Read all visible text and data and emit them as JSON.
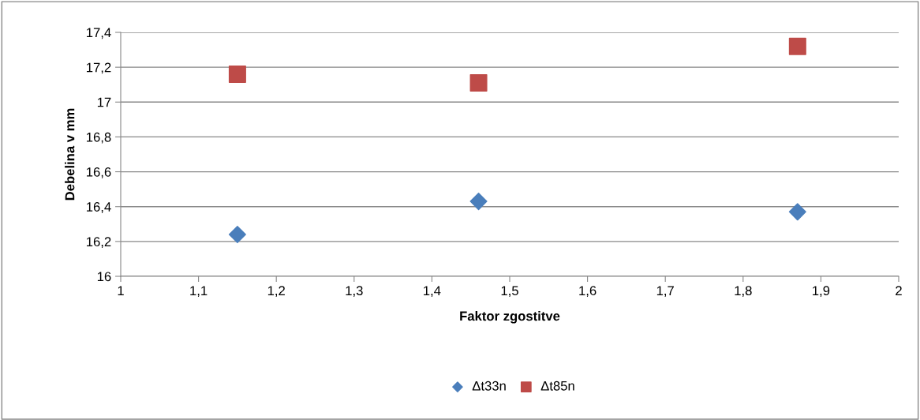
{
  "chart_data": {
    "type": "scatter",
    "xlabel": "Faktor zgostitve",
    "ylabel": "Debelina v mm",
    "series": [
      {
        "name": "Δt33n",
        "color": "#4a7ebb",
        "marker": "diamond",
        "x": [
          1.15,
          1.46,
          1.87
        ],
        "values": [
          16.24,
          16.43,
          16.37
        ]
      },
      {
        "name": "Δt85n",
        "color": "#be4b48",
        "marker": "square",
        "x": [
          1.15,
          1.46,
          1.87
        ],
        "values": [
          17.16,
          17.11,
          17.32
        ]
      }
    ],
    "xlim": [
      1,
      2
    ],
    "xticks": [
      {
        "value": 1,
        "label": "1"
      },
      {
        "value": 1.1,
        "label": "1,1"
      },
      {
        "value": 1.2,
        "label": "1,2"
      },
      {
        "value": 1.3,
        "label": "1,3"
      },
      {
        "value": 1.4,
        "label": "1,4"
      },
      {
        "value": 1.5,
        "label": "1,5"
      },
      {
        "value": 1.6,
        "label": "1,6"
      },
      {
        "value": 1.7,
        "label": "1,7"
      },
      {
        "value": 1.8,
        "label": "1,8"
      },
      {
        "value": 1.9,
        "label": "1,9"
      },
      {
        "value": 2,
        "label": "2"
      }
    ],
    "ylim": [
      16,
      17.4
    ],
    "yticks": [
      {
        "value": 16,
        "label": "16"
      },
      {
        "value": 16.2,
        "label": "16,2"
      },
      {
        "value": 16.4,
        "label": "16,4"
      },
      {
        "value": 16.6,
        "label": "16,6"
      },
      {
        "value": 16.8,
        "label": "16,8"
      },
      {
        "value": 17,
        "label": "17"
      },
      {
        "value": 17.2,
        "label": "17,2"
      },
      {
        "value": 17.4,
        "label": "17,4"
      }
    ],
    "grid": "y",
    "legend": "bottom"
  }
}
